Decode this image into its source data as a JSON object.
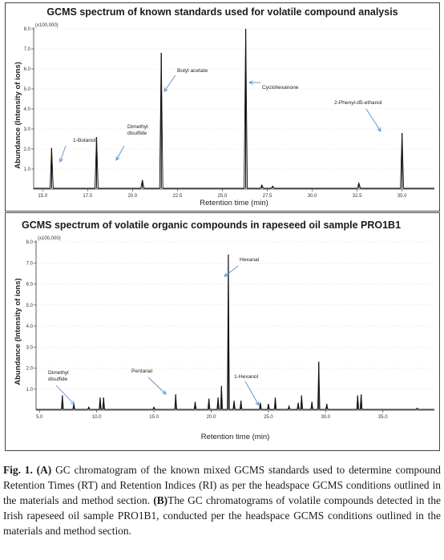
{
  "chart_data": [
    {
      "type": "line",
      "title": "GCMS spectrum of known standards used for volatile compound analysis",
      "xlabel": "Retention time (min)",
      "ylabel": "Abundance (Intensity of ions)",
      "y_multiplier": "(x100,000)",
      "xlim": [
        14.5,
        36.8
      ],
      "ylim": [
        0,
        8.0
      ],
      "x_ticks": [
        "15.0",
        "17.5",
        "20.0",
        "22.5",
        "25.0",
        "27.5",
        "30.0",
        "32.5",
        "35.0"
      ],
      "y_ticks": [
        "1.0",
        "2.0",
        "3.0",
        "4.0",
        "5.0",
        "6.0",
        "7.0",
        "8.0"
      ],
      "peaks": [
        {
          "rt": 15.5,
          "height": 2.05
        },
        {
          "rt": 18.0,
          "height": 2.6
        },
        {
          "rt": 20.55,
          "height": 0.45
        },
        {
          "rt": 21.6,
          "height": 6.8
        },
        {
          "rt": 26.3,
          "height": 8.0
        },
        {
          "rt": 27.2,
          "height": 0.2
        },
        {
          "rt": 27.8,
          "height": 0.15
        },
        {
          "rt": 32.6,
          "height": 0.3
        },
        {
          "rt": 35.0,
          "height": 2.8
        }
      ],
      "annotations": [
        {
          "text": "1-Butanol",
          "rt": 15.5
        },
        {
          "text": "Dimethyl disulfide",
          "rt": 18.0
        },
        {
          "text": "Butyl acetate",
          "rt": 21.6
        },
        {
          "text": "Cyclohexanone",
          "rt": 26.3
        },
        {
          "text": "2-Phenyl-d5-ethanol",
          "rt": 35.0
        }
      ]
    },
    {
      "type": "line",
      "title": "GCMS spectrum of volatile organic compounds in rapeseed oil sample PRO1B1",
      "xlabel": "Retention time (min)",
      "ylabel": "Abundance (Intensity of ions)",
      "y_multiplier": "(x100,000)",
      "xlim": [
        4.7,
        39.5
      ],
      "ylim": [
        0,
        8.0
      ],
      "x_ticks": [
        "5.0",
        "10.0",
        "15.0",
        "20.0",
        "25.0",
        "30.0",
        "35.0"
      ],
      "y_ticks": [
        "1.0",
        "2.0",
        "3.0",
        "4.0",
        "5.0",
        "6.0",
        "7.0",
        "8.0"
      ],
      "peaks": [
        {
          "rt": 7.0,
          "height": 0.7
        },
        {
          "rt": 8.0,
          "height": 0.3
        },
        {
          "rt": 9.3,
          "height": 0.15
        },
        {
          "rt": 10.3,
          "height": 0.6
        },
        {
          "rt": 10.6,
          "height": 0.6
        },
        {
          "rt": 15.0,
          "height": 0.15
        },
        {
          "rt": 16.9,
          "height": 0.75
        },
        {
          "rt": 18.6,
          "height": 0.4
        },
        {
          "rt": 19.8,
          "height": 0.55
        },
        {
          "rt": 20.6,
          "height": 0.6
        },
        {
          "rt": 20.9,
          "height": 1.15
        },
        {
          "rt": 21.5,
          "height": 7.4
        },
        {
          "rt": 22.0,
          "height": 0.45
        },
        {
          "rt": 22.6,
          "height": 0.45
        },
        {
          "rt": 24.3,
          "height": 0.35
        },
        {
          "rt": 25.0,
          "height": 0.3
        },
        {
          "rt": 25.6,
          "height": 0.6
        },
        {
          "rt": 26.8,
          "height": 0.2
        },
        {
          "rt": 27.6,
          "height": 0.35
        },
        {
          "rt": 27.9,
          "height": 0.7
        },
        {
          "rt": 28.8,
          "height": 0.4
        },
        {
          "rt": 29.4,
          "height": 2.3
        },
        {
          "rt": 30.1,
          "height": 0.3
        },
        {
          "rt": 32.8,
          "height": 0.7
        },
        {
          "rt": 33.1,
          "height": 0.75
        },
        {
          "rt": 38.0,
          "height": 0.1
        }
      ],
      "annotations": [
        {
          "text": "Dimethyl disulfide",
          "rt": 8.8
        },
        {
          "text": "Pentanal",
          "rt": 16.9
        },
        {
          "text": "Hexanal",
          "rt": 21.5
        },
        {
          "text": "1-Hexanol",
          "rt": 25.1
        }
      ]
    }
  ],
  "caption": {
    "fig": "Fig. 1.",
    "label_a": "(A)",
    "text_a": " GC chromatogram of the known mixed GCMS standards used to determine compound Retention Times (RT) and Retention Indices (RI) as per the headspace GCMS conditions outlined in the materials and method section.",
    "label_b": "(B)",
    "text_b": "The GC chromatograms of volatile compounds detected in the Irish rapeseed oil sample PRO1B1, conducted per the headspace GCMS conditions outlined in the materials and method section."
  }
}
